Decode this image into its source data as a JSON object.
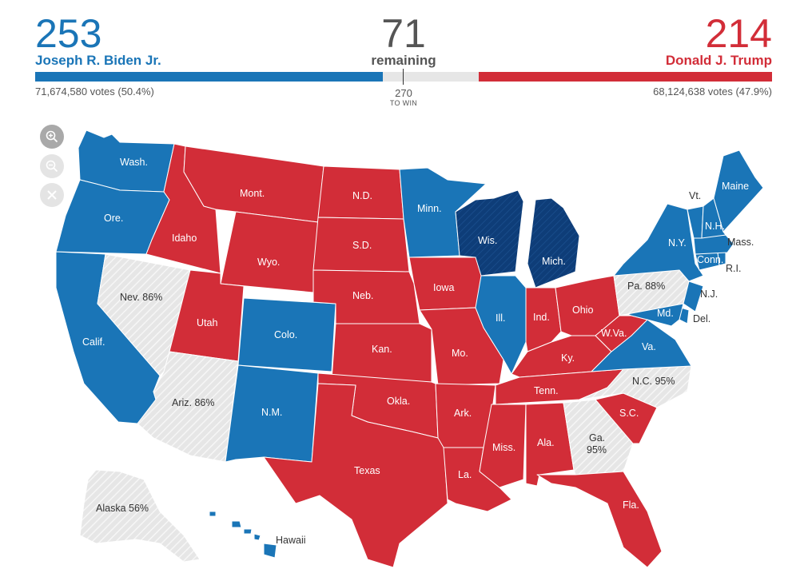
{
  "header": {
    "biden": {
      "electoral": "253",
      "name": "Joseph R. Biden Jr.",
      "votes": "71,674,580 votes (50.4%)",
      "color": "#1a75b7"
    },
    "trump": {
      "electoral": "214",
      "name": "Donald J. Trump",
      "votes": "68,124,638 votes (47.9%)",
      "color": "#d22d38"
    },
    "remaining": {
      "count": "71",
      "label": "remaining",
      "color": "#e6e6e6"
    },
    "threshold": {
      "value": "270",
      "label": "TO WIN"
    }
  },
  "zoom_controls": [
    {
      "name": "zoom-in-icon",
      "enabled": true
    },
    {
      "name": "zoom-out-icon",
      "enabled": false
    },
    {
      "name": "close-icon",
      "enabled": false
    }
  ],
  "colors": {
    "dem": "#1a75b7",
    "dem_flip": "#0e3d78",
    "rep": "#d22d38",
    "pending": "#e6e6e6"
  },
  "states": [
    {
      "id": "wash",
      "label": "Wash.",
      "status": "dem"
    },
    {
      "id": "ore",
      "label": "Ore.",
      "status": "dem"
    },
    {
      "id": "calif",
      "label": "Calif.",
      "status": "dem"
    },
    {
      "id": "nev",
      "label": "Nev. 86%",
      "status": "pending"
    },
    {
      "id": "idaho",
      "label": "Idaho",
      "status": "rep"
    },
    {
      "id": "mont",
      "label": "Mont.",
      "status": "rep"
    },
    {
      "id": "wyo",
      "label": "Wyo.",
      "status": "rep"
    },
    {
      "id": "utah",
      "label": "Utah",
      "status": "rep"
    },
    {
      "id": "ariz",
      "label": "Ariz. 86%",
      "status": "pending"
    },
    {
      "id": "colo",
      "label": "Colo.",
      "status": "dem"
    },
    {
      "id": "nm",
      "label": "N.M.",
      "status": "dem"
    },
    {
      "id": "nd",
      "label": "N.D.",
      "status": "rep"
    },
    {
      "id": "sd",
      "label": "S.D.",
      "status": "rep"
    },
    {
      "id": "neb",
      "label": "Neb.",
      "status": "rep"
    },
    {
      "id": "kan",
      "label": "Kan.",
      "status": "rep"
    },
    {
      "id": "okla",
      "label": "Okla.",
      "status": "rep"
    },
    {
      "id": "texas",
      "label": "Texas",
      "status": "rep"
    },
    {
      "id": "minn",
      "label": "Minn.",
      "status": "dem"
    },
    {
      "id": "iowa",
      "label": "Iowa",
      "status": "rep"
    },
    {
      "id": "mo",
      "label": "Mo.",
      "status": "rep"
    },
    {
      "id": "ark",
      "label": "Ark.",
      "status": "rep"
    },
    {
      "id": "la",
      "label": "La.",
      "status": "rep"
    },
    {
      "id": "wis",
      "label": "Wis.",
      "status": "dem_flip"
    },
    {
      "id": "mich",
      "label": "Mich.",
      "status": "dem_flip"
    },
    {
      "id": "ill",
      "label": "Ill.",
      "status": "dem"
    },
    {
      "id": "ind",
      "label": "Ind.",
      "status": "rep"
    },
    {
      "id": "ohio",
      "label": "Ohio",
      "status": "rep"
    },
    {
      "id": "ky",
      "label": "Ky.",
      "status": "rep"
    },
    {
      "id": "tenn",
      "label": "Tenn.",
      "status": "rep"
    },
    {
      "id": "miss",
      "label": "Miss.",
      "status": "rep"
    },
    {
      "id": "ala",
      "label": "Ala.",
      "status": "rep"
    },
    {
      "id": "ga",
      "label": "Ga.",
      "sublabel": "95%",
      "status": "pending"
    },
    {
      "id": "fla",
      "label": "Fla.",
      "status": "rep"
    },
    {
      "id": "sc",
      "label": "S.C.",
      "status": "rep"
    },
    {
      "id": "nc",
      "label": "N.C. 95%",
      "status": "pending"
    },
    {
      "id": "va",
      "label": "Va.",
      "status": "dem"
    },
    {
      "id": "wva",
      "label": "W.Va.",
      "status": "rep"
    },
    {
      "id": "pa",
      "label": "Pa. 88%",
      "status": "pending"
    },
    {
      "id": "ny",
      "label": "N.Y.",
      "status": "dem"
    },
    {
      "id": "nj",
      "label": "N.J.",
      "status": "dem"
    },
    {
      "id": "del",
      "label": "Del.",
      "status": "dem"
    },
    {
      "id": "md",
      "label": "Md.",
      "status": "dem"
    },
    {
      "id": "conn",
      "label": "Conn.",
      "status": "dem"
    },
    {
      "id": "ri",
      "label": "R.I.",
      "status": "dem"
    },
    {
      "id": "mass",
      "label": "Mass.",
      "status": "dem"
    },
    {
      "id": "vt",
      "label": "Vt.",
      "status": "dem"
    },
    {
      "id": "nh",
      "label": "N.H.",
      "status": "dem"
    },
    {
      "id": "maine",
      "label": "Maine",
      "status": "dem"
    },
    {
      "id": "alaska",
      "label": "Alaska 56%",
      "status": "pending"
    },
    {
      "id": "hawaii",
      "label": "Hawaii",
      "status": "dem"
    }
  ]
}
